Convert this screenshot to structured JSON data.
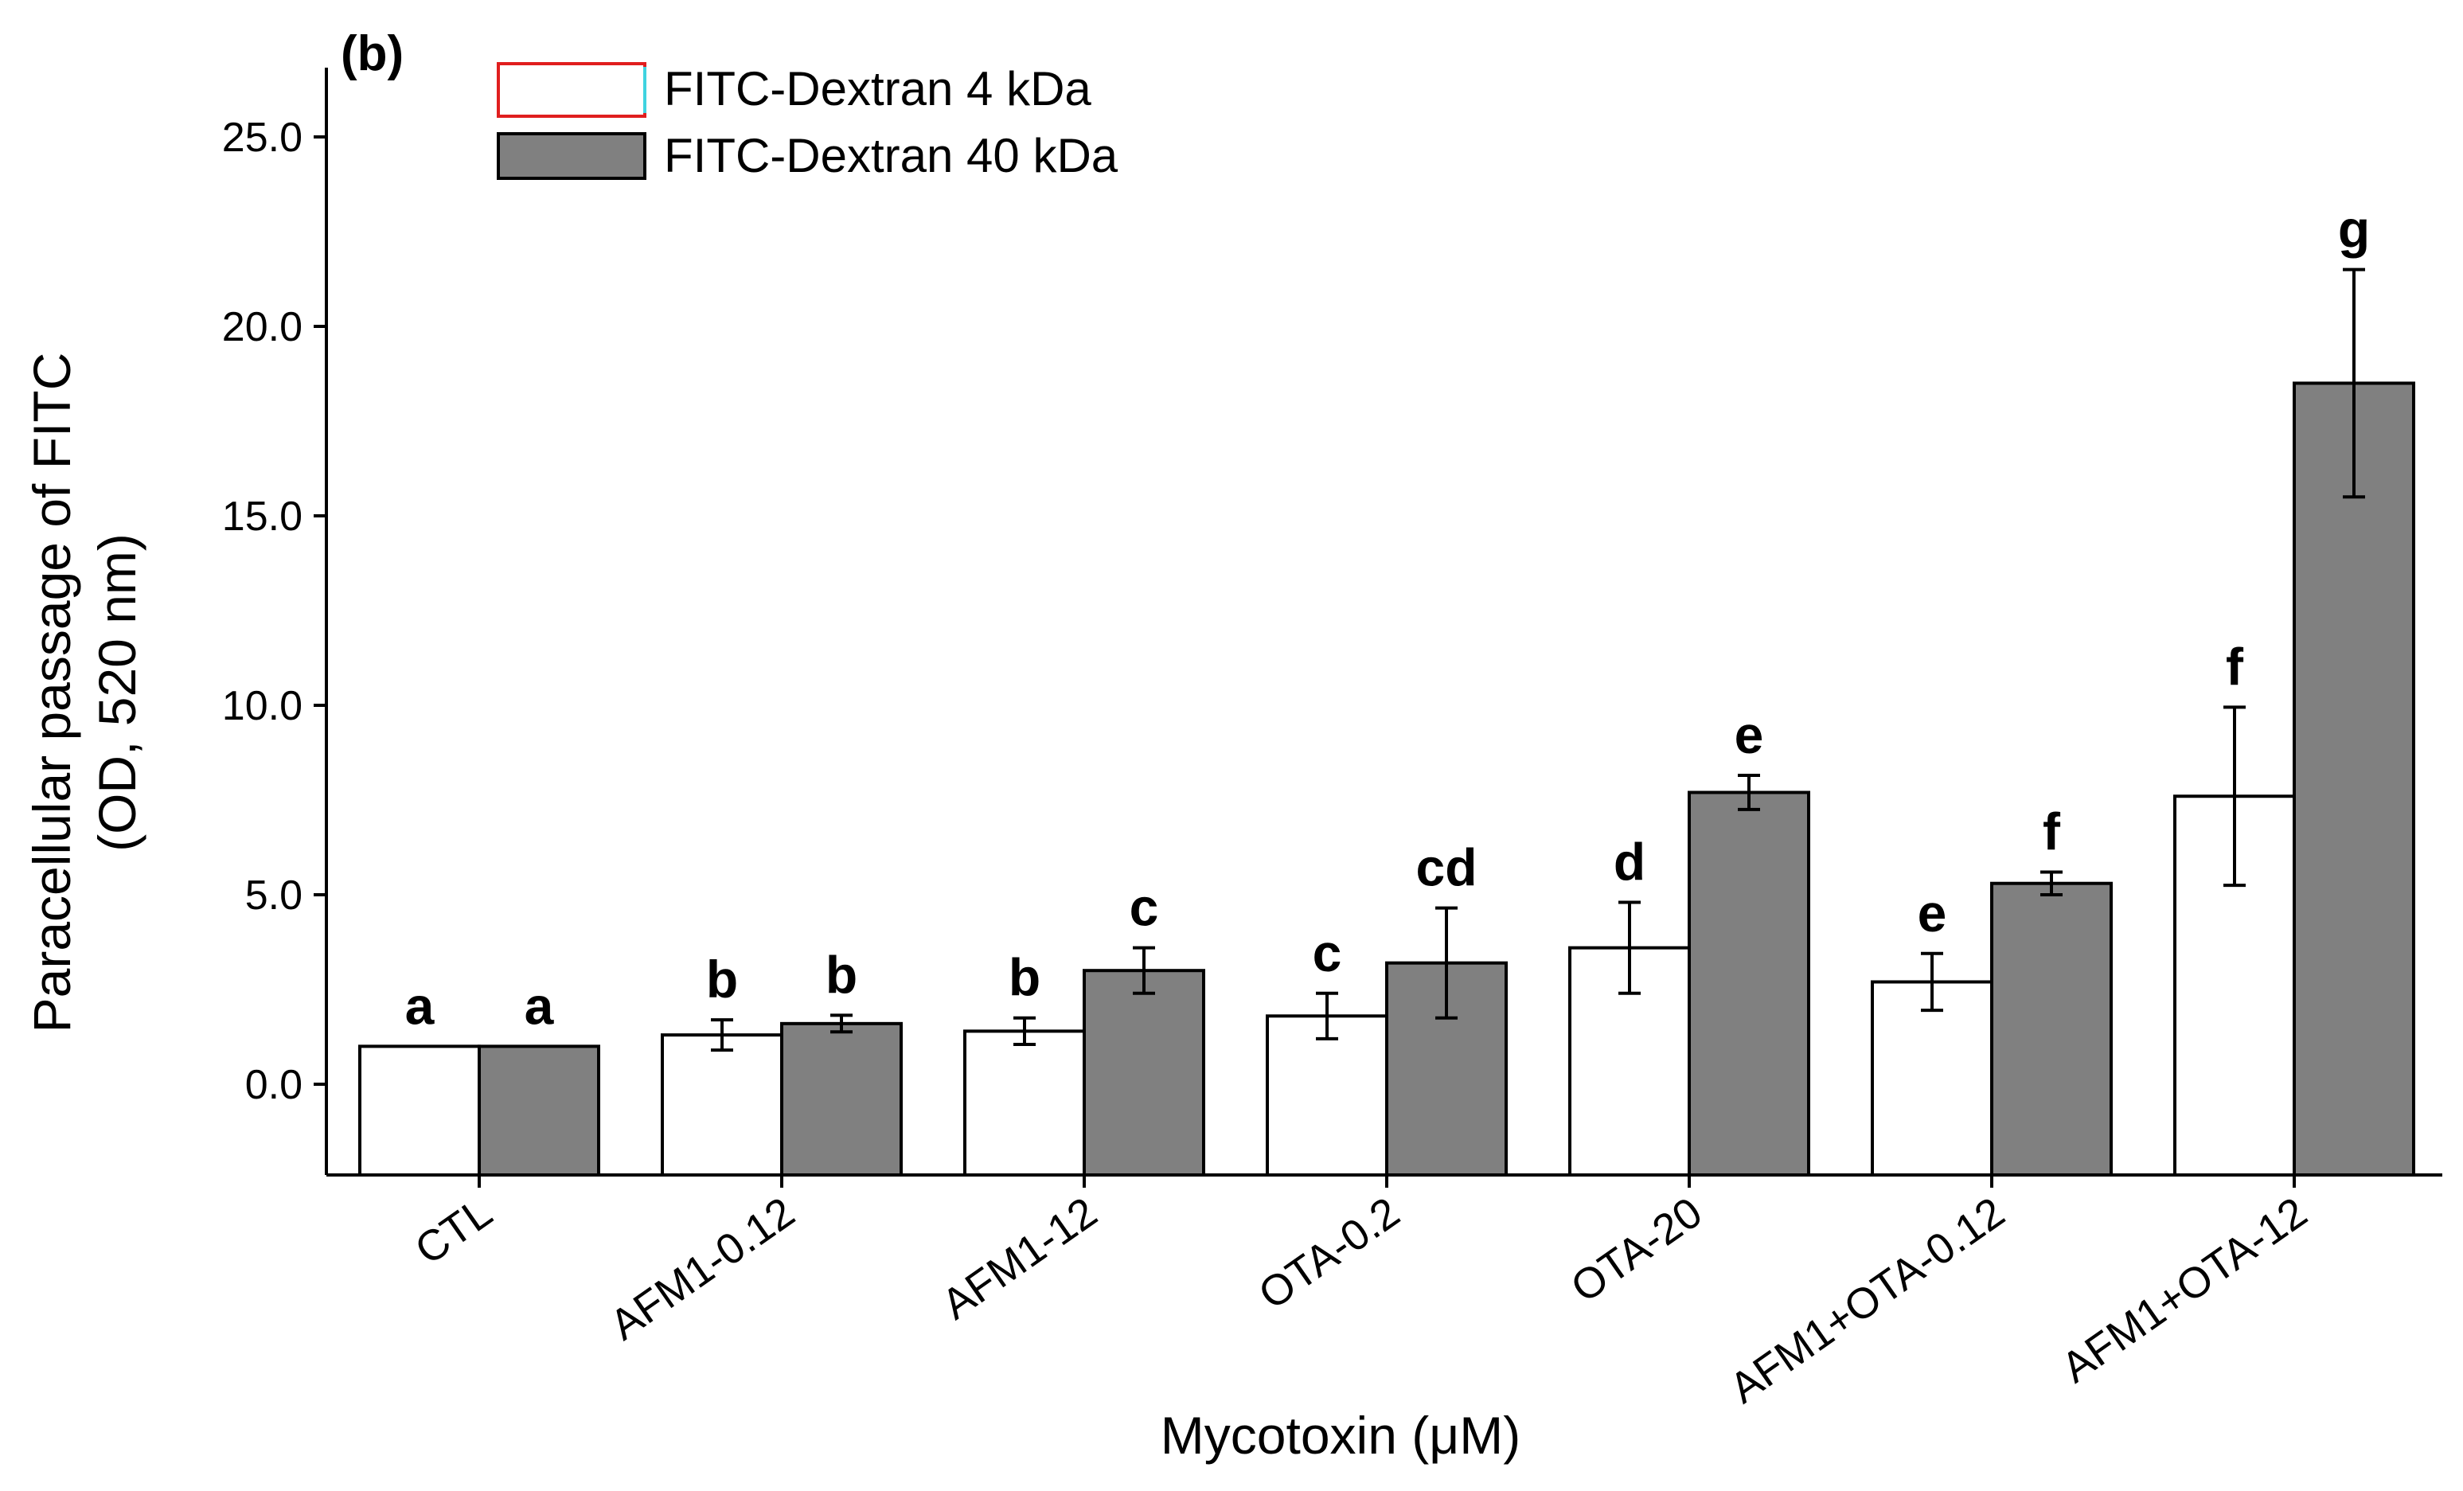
{
  "chart_data": {
    "type": "bar",
    "panel_label": "(b)",
    "title": "",
    "xlabel": "Mycotoxin (μM)",
    "ylabel_line1": "Paracellular passage of FITC",
    "ylabel_line2": "(OD, 520 nm)",
    "ylim": [
      -2.6,
      27.3
    ],
    "yticks": [
      0,
      5,
      10,
      15,
      20,
      25
    ],
    "ytick_labels": [
      "0.0",
      "5.0",
      "10.0",
      "15.0",
      "20.0",
      "25.0"
    ],
    "categories": [
      "CTL",
      "AFM1-0.12",
      "AFM1-12",
      "OTA-0.2",
      "OTA-20",
      "AFM1+OTA-0.12",
      "AFM1+OTA-12"
    ],
    "series": [
      {
        "name": "FITC-Dextran 4 kDa",
        "color": "#ffffff",
        "values": [
          1.0,
          1.3,
          1.4,
          1.8,
          3.6,
          2.7,
          7.6
        ],
        "errors": [
          0.0,
          0.4,
          0.35,
          0.6,
          1.2,
          0.75,
          2.35
        ],
        "letters": [
          "a",
          "b",
          "b",
          "c",
          "d",
          "e",
          "f"
        ]
      },
      {
        "name": "FITC-Dextran 40 kDa",
        "color": "#808080",
        "values": [
          1.0,
          1.6,
          3.0,
          3.2,
          7.7,
          5.3,
          18.5
        ],
        "errors": [
          0.0,
          0.22,
          0.6,
          1.45,
          0.45,
          0.3,
          3.0
        ],
        "letters": [
          "a",
          "b",
          "c",
          "cd",
          "e",
          "f",
          "g"
        ]
      }
    ],
    "legend_position": "top-left"
  }
}
